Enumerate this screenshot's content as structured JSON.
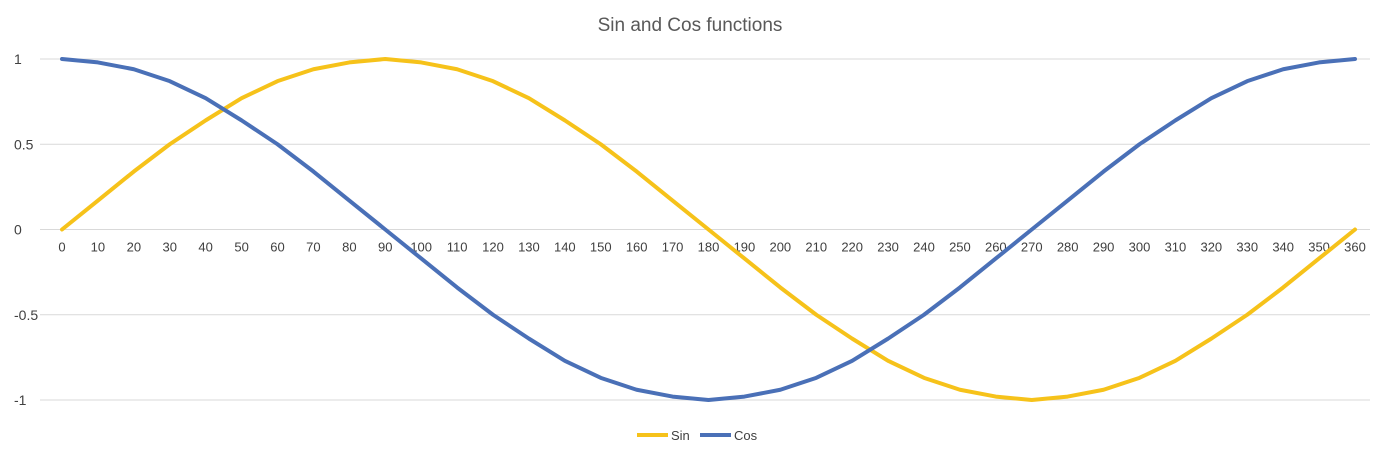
{
  "chart_data": {
    "type": "line",
    "title": "Sin and Cos functions",
    "x": [
      0,
      10,
      20,
      30,
      40,
      50,
      60,
      70,
      80,
      90,
      100,
      110,
      120,
      130,
      140,
      150,
      160,
      170,
      180,
      190,
      200,
      210,
      220,
      230,
      240,
      250,
      260,
      270,
      280,
      290,
      300,
      310,
      320,
      330,
      340,
      350,
      360
    ],
    "x_tick_labels": [
      "0",
      "10",
      "20",
      "30",
      "40",
      "50",
      "60",
      "70",
      "80",
      "90",
      "100",
      "110",
      "120",
      "130",
      "140",
      "150",
      "160",
      "170",
      "180",
      "190",
      "200",
      "210",
      "220",
      "230",
      "240",
      "250",
      "260",
      "270",
      "280",
      "290",
      "300",
      "310",
      "320",
      "330",
      "340",
      "350",
      "360"
    ],
    "y_tick_labels": [
      "1",
      "0.5",
      "0",
      "-0.5",
      "-1"
    ],
    "y_ticks": [
      1,
      0.5,
      0,
      -0.5,
      -1
    ],
    "ylim": [
      -1,
      1
    ],
    "grid": true,
    "legend_position": "bottom",
    "series": [
      {
        "name": "Sin",
        "color": "#F6C21A",
        "values": [
          0,
          0.17,
          0.34,
          0.5,
          0.64,
          0.77,
          0.87,
          0.94,
          0.98,
          1,
          0.98,
          0.94,
          0.87,
          0.77,
          0.64,
          0.5,
          0.34,
          0.17,
          0,
          -0.17,
          -0.34,
          -0.5,
          -0.64,
          -0.77,
          -0.87,
          -0.94,
          -0.98,
          -1,
          -0.98,
          -0.94,
          -0.87,
          -0.77,
          -0.64,
          -0.5,
          -0.34,
          -0.17,
          0
        ]
      },
      {
        "name": "Cos",
        "color": "#4A70B7",
        "values": [
          1,
          0.98,
          0.94,
          0.87,
          0.77,
          0.64,
          0.5,
          0.34,
          0.17,
          0,
          -0.17,
          -0.34,
          -0.5,
          -0.64,
          -0.77,
          -0.87,
          -0.94,
          -0.98,
          -1,
          -0.98,
          -0.94,
          -0.87,
          -0.77,
          -0.64,
          -0.5,
          -0.34,
          -0.17,
          0,
          0.17,
          0.34,
          0.5,
          0.64,
          0.77,
          0.87,
          0.94,
          0.98,
          1
        ]
      }
    ]
  }
}
